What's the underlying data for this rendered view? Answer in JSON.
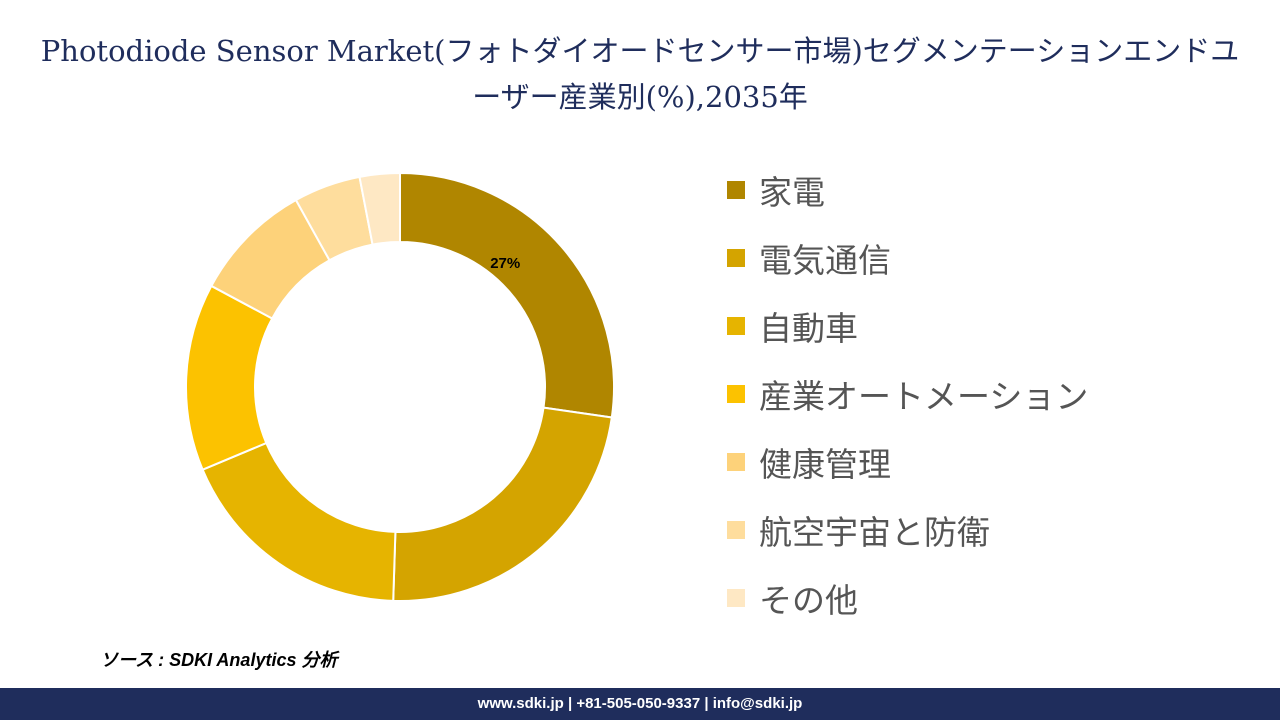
{
  "title": "Photodiode Sensor Market(フォトダイオードセンサー市場)セグメンテーションエンドユーザー産業別(%),2035年",
  "source": "ソース : SDKI Analytics 分析",
  "footer": "www.sdki.jp | +81-505-050-9337 | info@sdki.jp",
  "chart_data": {
    "type": "pie",
    "style": "donut",
    "categories": [
      "家電",
      "電気通信",
      "自動車",
      "産業オートメーション",
      "健康管理",
      "航空宇宙と防衛",
      "その他"
    ],
    "values": [
      27,
      23,
      18,
      14,
      9,
      5,
      3
    ],
    "data_labels": [
      "27%",
      "",
      "",
      "",
      "",
      "",
      ""
    ],
    "colors": [
      "#b08600",
      "#d4a400",
      "#e6b400",
      "#fcc200",
      "#fdd27a",
      "#fedd9d",
      "#fee8c4"
    ],
    "legend_position": "right"
  }
}
